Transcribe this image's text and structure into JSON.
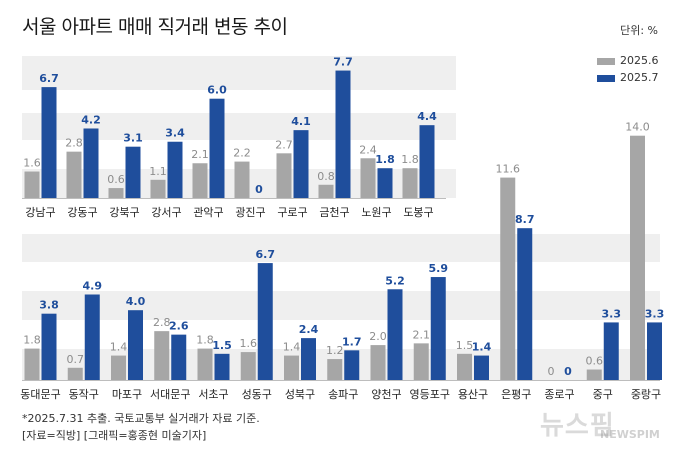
{
  "title": "서울 아파트 매매 직거래 변동 추이",
  "unit": "단위: %",
  "legend": [
    {
      "name": "2025.6",
      "color": "#a6a6a6"
    },
    {
      "name": "2025.7",
      "color": "#1f4e9c"
    }
  ],
  "notes": [
    "*2025.7.31 추출. 국토교통부 실거래가 자료 기준.",
    "[자료=직방] [그래픽=홍종현 미술기자]"
  ],
  "watermark": "뉴스핌",
  "watermark_sub": "NEWSPIM",
  "chart_data": [
    {
      "type": "bar",
      "categories": [
        "강남구",
        "강동구",
        "강북구",
        "강서구",
        "관악구",
        "광진구",
        "구로구",
        "금천구",
        "노원구",
        "도봉구"
      ],
      "series": [
        {
          "name": "2025.6",
          "values": [
            1.6,
            2.8,
            0.6,
            1.1,
            2.1,
            2.2,
            2.7,
            0.8,
            2.4,
            1.8
          ]
        },
        {
          "name": "2025.7",
          "values": [
            6.7,
            4.2,
            3.1,
            3.4,
            6.0,
            0,
            4.1,
            7.7,
            1.8,
            4.4
          ]
        }
      ],
      "data_labels": [
        [
          "1.6",
          "2.8",
          "0.6",
          "1.1",
          "2.1",
          "2.2",
          "2.7",
          "0.8",
          "2.4",
          "1.8"
        ],
        [
          "6.7",
          "4.2",
          "3.1",
          "3.4",
          "6.0",
          "0",
          "4.1",
          "7.7",
          "1.8",
          "4.4"
        ]
      ]
    },
    {
      "type": "bar",
      "categories": [
        "동대문구",
        "동작구",
        "마포구",
        "서대문구",
        "서초구",
        "성동구",
        "성북구",
        "송파구",
        "양천구",
        "영등포구",
        "용산구",
        "은평구",
        "종로구",
        "중구",
        "중랑구"
      ],
      "series": [
        {
          "name": "2025.6",
          "values": [
            1.8,
            0.7,
            1.4,
            2.8,
            1.8,
            1.6,
            1.4,
            1.2,
            2.0,
            2.1,
            1.5,
            11.6,
            0,
            0.6,
            14.0
          ]
        },
        {
          "name": "2025.7",
          "values": [
            3.8,
            4.9,
            4.0,
            2.6,
            1.5,
            6.7,
            2.4,
            1.7,
            5.2,
            5.9,
            1.4,
            8.7,
            0,
            3.3,
            3.3
          ]
        }
      ],
      "data_labels": [
        [
          "1.8",
          "0.7",
          "1.4",
          "2.8",
          "1.8",
          "1.6",
          "1.4",
          "1.2",
          "2.0",
          "2.1",
          "1.5",
          "11.6",
          "0",
          "0.6",
          "14.0"
        ],
        [
          "3.8",
          "4.9",
          "4.0",
          "2.6",
          "1.5",
          "6.7",
          "2.4",
          "1.7",
          "5.2",
          "5.9",
          "1.4",
          "8.7",
          "0",
          "3.3",
          "3.3"
        ]
      ]
    }
  ]
}
